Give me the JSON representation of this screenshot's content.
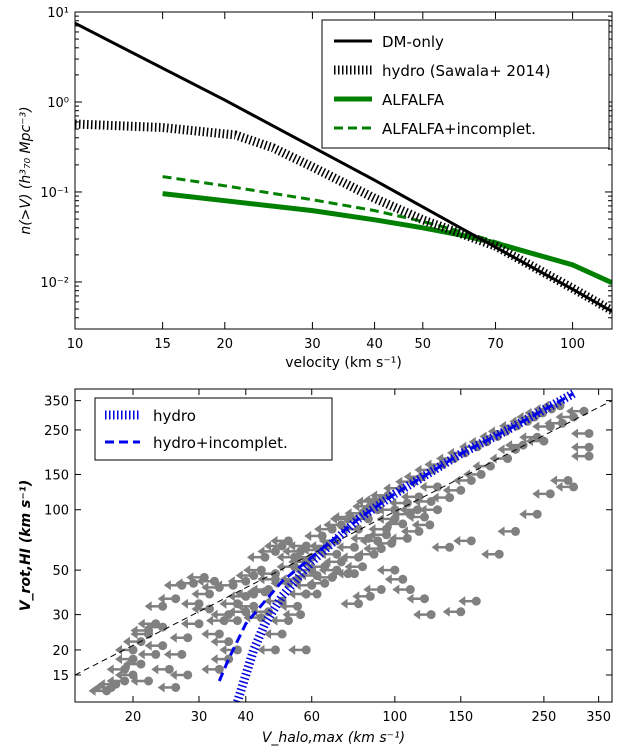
{
  "chart_data": [
    {
      "type": "line",
      "xlabel": "velocity   (km s⁻¹)",
      "ylabel": "n(>V)   (h³₇₀ Mpc⁻³)",
      "xscale": "log",
      "yscale": "log",
      "xlim": [
        10,
        120
      ],
      "ylim": [
        0.003,
        10
      ],
      "xticks": [
        10,
        15,
        20,
        30,
        40,
        50,
        70,
        100
      ],
      "xtick_labels": [
        "10",
        "15",
        "20",
        "30",
        "40",
        "50",
        "70",
        "100"
      ],
      "yticks": [
        0.01,
        0.1,
        1,
        10
      ],
      "ytick_labels": [
        "10⁻²",
        "10⁻¹",
        "10⁰",
        "10¹"
      ],
      "legend_placement": "top-right",
      "series": [
        {
          "name": "DM-only",
          "color": "#000000",
          "style": "solid",
          "x": [
            10,
            20,
            40,
            60,
            80,
            100,
            120
          ],
          "y": [
            7.5,
            1.05,
            0.135,
            0.039,
            0.0162,
            0.0083,
            0.0047
          ]
        },
        {
          "name": "hydro (Sawala+ 2014)",
          "color": "#000000",
          "style": "hatched",
          "x": [
            10,
            15,
            21,
            25,
            30,
            40,
            50,
            60,
            70,
            100,
            120
          ],
          "y": [
            0.57,
            0.52,
            0.43,
            0.31,
            0.19,
            0.085,
            0.049,
            0.034,
            0.025,
            0.0085,
            0.0048
          ]
        },
        {
          "name": "ALFALFA",
          "color": "#008000",
          "style": "solid-thick",
          "x": [
            15,
            20,
            30,
            40,
            50,
            60,
            70,
            100,
            120
          ],
          "y": [
            0.096,
            0.08,
            0.062,
            0.049,
            0.04,
            0.033,
            0.027,
            0.0155,
            0.0098
          ]
        },
        {
          "name": "ALFALFA+incomplet.",
          "color": "#008000",
          "style": "dashed",
          "x": [
            15,
            20,
            30,
            40,
            50,
            60,
            70,
            100,
            120
          ],
          "y": [
            0.148,
            0.117,
            0.082,
            0.062,
            0.047,
            0.036,
            0.028,
            0.0155,
            0.0098
          ]
        }
      ]
    },
    {
      "type": "scatter",
      "xlabel": "V_halo,max   (km s⁻¹)",
      "ylabel": "V_rot,HI   (km s⁻¹)",
      "xscale": "log",
      "yscale": "log",
      "xlim": [
        14,
        380
      ],
      "ylim": [
        11,
        400
      ],
      "xticks": [
        20,
        30,
        40,
        60,
        100,
        150,
        250,
        350
      ],
      "yticks": [
        15,
        20,
        30,
        50,
        100,
        150,
        250,
        350
      ],
      "legend_placement": "top-left",
      "series": [
        {
          "name": "hydro",
          "color": "#0000dd",
          "style": "hatched",
          "x": [
            38,
            40,
            42,
            45,
            50,
            60,
            80,
            100,
            150,
            200,
            300
          ],
          "y": [
            11,
            15,
            20,
            27,
            37,
            55,
            90,
            120,
            190,
            250,
            380
          ]
        },
        {
          "name": "hydro+incomplet.",
          "color": "#0000ee",
          "style": "dashed",
          "x": [
            34,
            36,
            40,
            45,
            50,
            60,
            80,
            100,
            150,
            200,
            300
          ],
          "y": [
            14,
            18,
            27,
            35,
            44,
            58,
            90,
            120,
            190,
            250,
            380
          ]
        },
        {
          "name": "",
          "color": "#000000",
          "style": "dashed-thin",
          "x": [
            14,
            380
          ],
          "y": [
            15,
            350
          ]
        }
      ],
      "points": [
        [
          17,
          12.5
        ],
        [
          17.5,
          13
        ],
        [
          19,
          16
        ],
        [
          20,
          18
        ],
        [
          20,
          20
        ],
        [
          21,
          22
        ],
        [
          22,
          14
        ],
        [
          23,
          19
        ],
        [
          24,
          21
        ],
        [
          25,
          16
        ],
        [
          26,
          13
        ],
        [
          22,
          25
        ],
        [
          24,
          26
        ],
        [
          27,
          19
        ],
        [
          28,
          15
        ],
        [
          30,
          27
        ],
        [
          28,
          23
        ],
        [
          32,
          32
        ],
        [
          35,
          28
        ],
        [
          36,
          30
        ],
        [
          38,
          34
        ],
        [
          40,
          37
        ],
        [
          42,
          38
        ],
        [
          37,
          42
        ],
        [
          40,
          44
        ],
        [
          45,
          39
        ],
        [
          46,
          31
        ],
        [
          50,
          35
        ],
        [
          52,
          43
        ],
        [
          48,
          48
        ],
        [
          55,
          45
        ],
        [
          58,
          55
        ],
        [
          60,
          50
        ],
        [
          62,
          47
        ],
        [
          65,
          52
        ],
        [
          68,
          46
        ],
        [
          70,
          60
        ],
        [
          72,
          55
        ],
        [
          75,
          48
        ],
        [
          78,
          65
        ],
        [
          80,
          58
        ],
        [
          85,
          72
        ],
        [
          90,
          70
        ],
        [
          95,
          80
        ],
        [
          100,
          90
        ],
        [
          105,
          85
        ],
        [
          110,
          95
        ],
        [
          115,
          100
        ],
        [
          120,
          92
        ],
        [
          125,
          110
        ],
        [
          130,
          100
        ],
        [
          140,
          115
        ],
        [
          150,
          125
        ],
        [
          160,
          140
        ],
        [
          170,
          150
        ],
        [
          180,
          165
        ],
        [
          200,
          180
        ],
        [
          210,
          200
        ],
        [
          220,
          210
        ],
        [
          240,
          230
        ],
        [
          250,
          220
        ],
        [
          260,
          260
        ],
        [
          280,
          270
        ],
        [
          300,
          290
        ],
        [
          320,
          310
        ],
        [
          330,
          240
        ],
        [
          330,
          205
        ],
        [
          330,
          185
        ],
        [
          95,
          75
        ],
        [
          100,
          50
        ],
        [
          105,
          45
        ],
        [
          110,
          40
        ],
        [
          120,
          36
        ],
        [
          125,
          30
        ],
        [
          150,
          31
        ],
        [
          165,
          35
        ],
        [
          140,
          65
        ],
        [
          160,
          70
        ],
        [
          190,
          60
        ],
        [
          210,
          78
        ],
        [
          240,
          95
        ],
        [
          260,
          120
        ],
        [
          290,
          140
        ],
        [
          300,
          130
        ],
        [
          90,
          100
        ],
        [
          88,
          110
        ],
        [
          85,
          90
        ],
        [
          80,
          80
        ],
        [
          75,
          90
        ],
        [
          70,
          70
        ],
        [
          66,
          66
        ],
        [
          63,
          63
        ],
        [
          60,
          42
        ],
        [
          58,
          38
        ],
        [
          55,
          33
        ],
        [
          52,
          28
        ],
        [
          50,
          24
        ],
        [
          48,
          45
        ],
        [
          46,
          40
        ],
        [
          44,
          50
        ],
        [
          42,
          47
        ],
        [
          40,
          31
        ],
        [
          38,
          28
        ],
        [
          36,
          22
        ],
        [
          34,
          24
        ],
        [
          33,
          44
        ],
        [
          31,
          46
        ],
        [
          29,
          43
        ],
        [
          27,
          42
        ],
        [
          26,
          36
        ],
        [
          24,
          33
        ],
        [
          23,
          27
        ],
        [
          22,
          24
        ],
        [
          21,
          17
        ],
        [
          20,
          15
        ],
        [
          19,
          14
        ],
        [
          18,
          13.5
        ],
        [
          30,
          34
        ],
        [
          32,
          38
        ],
        [
          34,
          41
        ],
        [
          42,
          33
        ],
        [
          44,
          29
        ],
        [
          54,
          58
        ],
        [
          56,
          62
        ],
        [
          58,
          66
        ],
        [
          64,
          74
        ],
        [
          68,
          80
        ],
        [
          72,
          84
        ],
        [
          76,
          92
        ],
        [
          82,
          96
        ],
        [
          86,
          104
        ],
        [
          92,
          112
        ],
        [
          96,
          118
        ],
        [
          104,
          128
        ],
        [
          112,
          138
        ],
        [
          118,
          146
        ],
        [
          126,
          158
        ],
        [
          134,
          168
        ],
        [
          144,
          180
        ],
        [
          154,
          192
        ],
        [
          166,
          206
        ],
        [
          176,
          218
        ],
        [
          188,
          232
        ],
        [
          198,
          246
        ],
        [
          212,
          262
        ],
        [
          226,
          276
        ],
        [
          236,
          290
        ],
        [
          248,
          304
        ],
        [
          262,
          318
        ],
        [
          276,
          330
        ],
        [
          70,
          50
        ],
        [
          65,
          43
        ],
        [
          62,
          38
        ],
        [
          78,
          48
        ],
        [
          82,
          52
        ],
        [
          88,
          60
        ],
        [
          92,
          64
        ],
        [
          98,
          68
        ],
        [
          108,
          72
        ],
        [
          116,
          78
        ],
        [
          124,
          84
        ],
        [
          56,
          30
        ],
        [
          48,
          20
        ],
        [
          58,
          20
        ],
        [
          38,
          20
        ],
        [
          36,
          18
        ],
        [
          34,
          16
        ],
        [
          80,
          34
        ],
        [
          86,
          37
        ],
        [
          92,
          40
        ],
        [
          45,
          58
        ],
        [
          48,
          62
        ],
        [
          50,
          66
        ],
        [
          52,
          70
        ],
        [
          54,
          52
        ],
        [
          60,
          58
        ],
        [
          100,
          100
        ],
        [
          108,
          108
        ],
        [
          116,
          116
        ],
        [
          130,
          130
        ]
      ]
    }
  ]
}
